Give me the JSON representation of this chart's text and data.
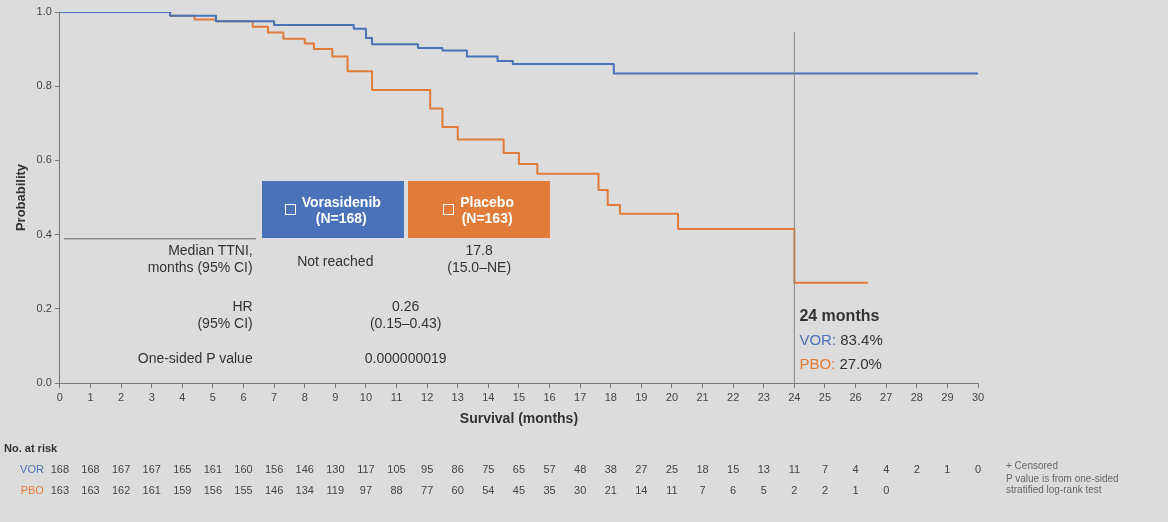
{
  "chart_data": {
    "type": "step",
    "xlabel": "Survival (months)",
    "ylabel": "Probability",
    "xlim": [
      0,
      30
    ],
    "xticks": [
      0,
      1,
      2,
      3,
      4,
      5,
      6,
      7,
      8,
      9,
      10,
      11,
      12,
      13,
      14,
      15,
      16,
      17,
      18,
      19,
      20,
      21,
      22,
      23,
      24,
      25,
      26,
      27,
      28,
      29,
      30
    ],
    "ylim": [
      0,
      1
    ],
    "yticks": [
      {
        "value": 0,
        "label": "0.0"
      },
      {
        "value": 0.2,
        "label": "0.2"
      },
      {
        "value": 0.4,
        "label": "0.4"
      },
      {
        "value": 0.6,
        "label": "0.6"
      },
      {
        "value": 0.8,
        "label": "0.8"
      },
      {
        "value": 1,
        "label": "1.0"
      }
    ],
    "grid": false,
    "legend": "center",
    "marker": "none",
    "line_style": "solid",
    "series": [
      {
        "name": "Vorasidenib (N=168)",
        "color": "#4a72b8",
        "x": [
          0,
          3.6,
          5.1,
          7.0,
          9.6,
          10.0,
          10.2,
          11.7,
          12.5,
          13.3,
          14.3,
          14.8,
          18.1,
          30
        ],
        "values": [
          1.0,
          0.99,
          0.975,
          0.965,
          0.955,
          0.93,
          0.913,
          0.903,
          0.896,
          0.88,
          0.868,
          0.86,
          0.834,
          0.834
        ]
      },
      {
        "name": "Placebo (N=163)",
        "color": "#e07b39",
        "x": [
          0,
          3.6,
          4.4,
          5.1,
          6.3,
          6.8,
          7.3,
          8.0,
          8.3,
          8.9,
          9.4,
          10.2,
          12.1,
          12.5,
          13.0,
          14.5,
          15.0,
          15.6,
          17.6,
          17.9,
          18.3,
          20.2,
          24.0,
          26.4
        ],
        "values": [
          1.0,
          0.99,
          0.98,
          0.975,
          0.96,
          0.945,
          0.928,
          0.915,
          0.9,
          0.88,
          0.84,
          0.79,
          0.74,
          0.69,
          0.656,
          0.62,
          0.59,
          0.564,
          0.52,
          0.48,
          0.456,
          0.415,
          0.27,
          0.27
        ]
      }
    ],
    "ref_lines": [
      {
        "axis": "x",
        "value": 24,
        "color": "#888888"
      }
    ],
    "annotations": [
      "Median TTNI,\nmonths (95% CI)",
      "Not reached",
      "17.8\n(15.0–NE)",
      "HR\n(95% CI)",
      "0.26\n(0.15–0.43)",
      "One-sided P value",
      "0.000000019",
      "24 months",
      "VOR: 83.4%",
      "PBO: 27.0%",
      "No. at risk",
      "VOR 168 168 167 167 165 161 160 156 146 130 117 105 95 86 75 65 57 48 38 27 25 18 15 13 11 7 4 4 2 1 0",
      "PBO 163 163 162 161 159 156 155 146 134 119 97 88 77 60 54 45 35 30 21 14 11 7 6 5 2 2 1 0",
      "+ Censored",
      "P value is from one-sided stratified log-rank test"
    ]
  }
}
